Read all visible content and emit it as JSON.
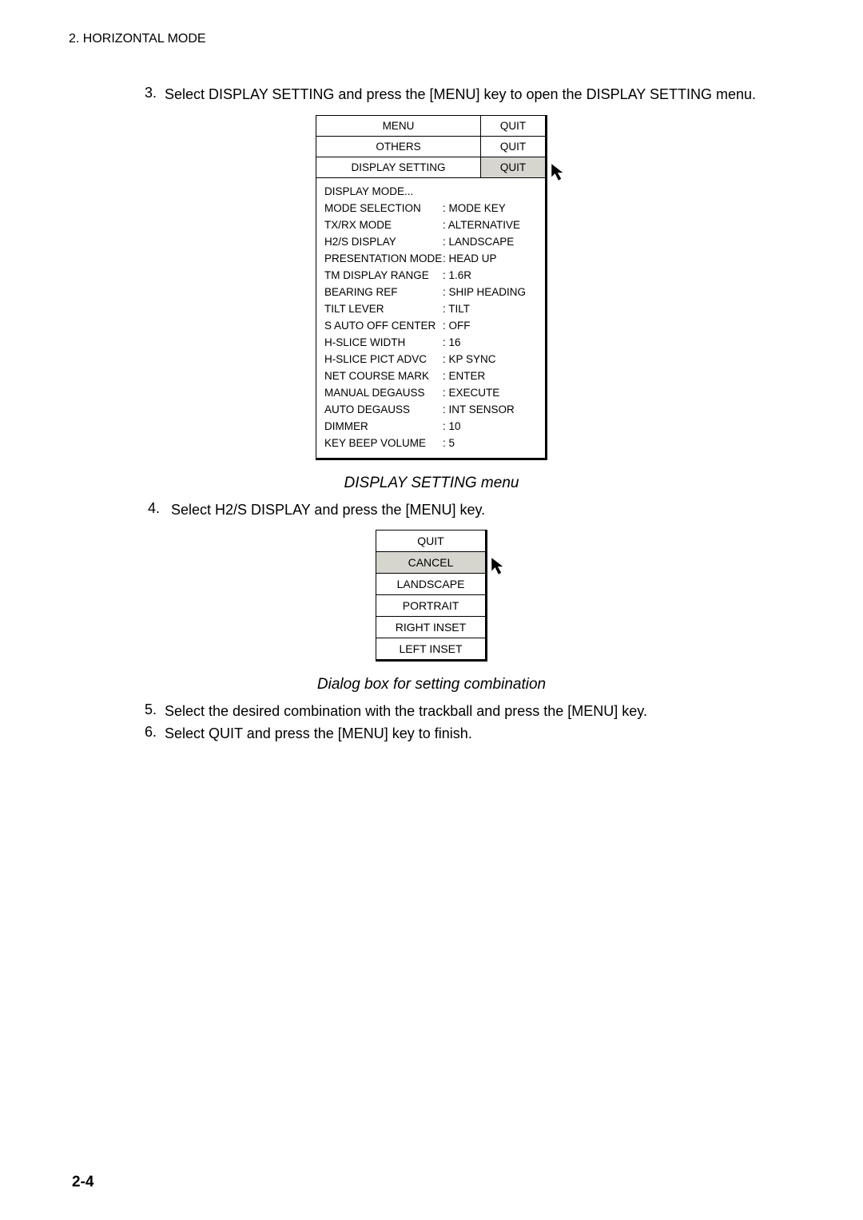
{
  "header": "2. HORIZONTAL MODE",
  "step3": {
    "num": "3.",
    "text": "Select DISPLAY SETTING and press the [MENU] key to open the DISPLAY SETTING menu."
  },
  "menu": {
    "headers": [
      {
        "left": "MENU",
        "right": "QUIT",
        "selected": false
      },
      {
        "left": "OTHERS",
        "right": "QUIT",
        "selected": false
      },
      {
        "left": "DISPLAY SETTING",
        "right": "QUIT",
        "selected": true
      }
    ],
    "line1": "DISPLAY MODE...",
    "rows": [
      {
        "label": "MODE SELECTION",
        "value": ": MODE KEY"
      },
      {
        "label": "TX/RX MODE",
        "value": ": ALTERNATIVE"
      },
      {
        "label": "H2/S DISPLAY",
        "value": ": LANDSCAPE"
      },
      {
        "label": "PRESENTATION MODE",
        "value": ": HEAD UP"
      },
      {
        "label": "TM DISPLAY RANGE",
        "value": ": 1.6R"
      },
      {
        "label": "BEARING REF",
        "value": ": SHIP HEADING"
      },
      {
        "label": "TILT LEVER",
        "value": ": TILT"
      },
      {
        "label": "S AUTO OFF CENTER",
        "value": ": OFF"
      },
      {
        "label": "H-SLICE WIDTH",
        "value": ": 16"
      },
      {
        "label": "H-SLICE PICT ADVC",
        "value": ": KP SYNC"
      },
      {
        "label": "NET COURSE MARK",
        "value": ": ENTER"
      },
      {
        "label": "MANUAL DEGAUSS",
        "value": ": EXECUTE"
      },
      {
        "label": "AUTO DEGAUSS",
        "value": ": INT SENSOR"
      },
      {
        "label": "DIMMER",
        "value": ": 10"
      },
      {
        "label": "KEY BEEP VOLUME",
        "value": ": 5"
      }
    ]
  },
  "caption1": "DISPLAY SETTING menu",
  "step4": {
    "num": "4.",
    "text": "Select H2/S DISPLAY and press the [MENU] key."
  },
  "dialog": {
    "rows": [
      {
        "text": "QUIT",
        "selected": false
      },
      {
        "text": "CANCEL",
        "selected": true
      },
      {
        "text": "LANDSCAPE",
        "selected": false
      },
      {
        "text": "PORTRAIT",
        "selected": false
      },
      {
        "text": "RIGHT INSET",
        "selected": false
      },
      {
        "text": "LEFT INSET",
        "selected": false
      }
    ]
  },
  "caption2": "Dialog box for setting combination",
  "step5": {
    "num": "5.",
    "text": "Select the desired combination with the trackball and press the [MENU] key."
  },
  "step6": {
    "num": "6.",
    "text": "Select QUIT and press the [MENU] key to finish."
  },
  "pageNum": "2-4"
}
